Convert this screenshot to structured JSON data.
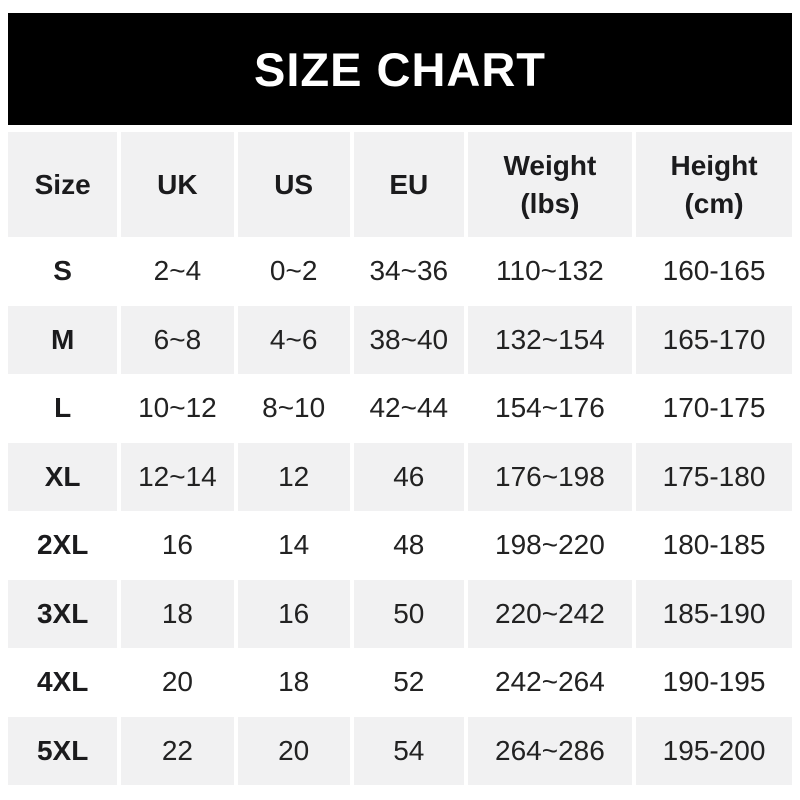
{
  "banner": {
    "title": "SIZE CHART",
    "bg_color": "#000000",
    "text_color": "#ffffff"
  },
  "chart_data": {
    "type": "table",
    "title": "SIZE CHART",
    "columns": [
      "Size",
      "UK",
      "US",
      "EU",
      "Weight\n(lbs)",
      "Height\n(cm)"
    ],
    "rows": [
      [
        "S",
        "2~4",
        "0~2",
        "34~36",
        "110~132",
        "160-165"
      ],
      [
        "M",
        "6~8",
        "4~6",
        "38~40",
        "132~154",
        "165-170"
      ],
      [
        "L",
        "10~12",
        "8~10",
        "42~44",
        "154~176",
        "170-175"
      ],
      [
        "XL",
        "12~14",
        "12",
        "46",
        "176~198",
        "175-180"
      ],
      [
        "2XL",
        "16",
        "14",
        "48",
        "198~220",
        "180-185"
      ],
      [
        "3XL",
        "18",
        "16",
        "50",
        "220~242",
        "185-190"
      ],
      [
        "4XL",
        "20",
        "18",
        "52",
        "242~264",
        "190-195"
      ],
      [
        "5XL",
        "22",
        "20",
        "54",
        "264~286",
        "195-200"
      ]
    ],
    "layout": {
      "header_bg": "#f1f1f2",
      "row_bg": "#ffffff",
      "row_alt_bg": "#f1f1f2",
      "text_color": "#222222",
      "separator_color": "#ffffff",
      "alternating_rows": true
    }
  }
}
